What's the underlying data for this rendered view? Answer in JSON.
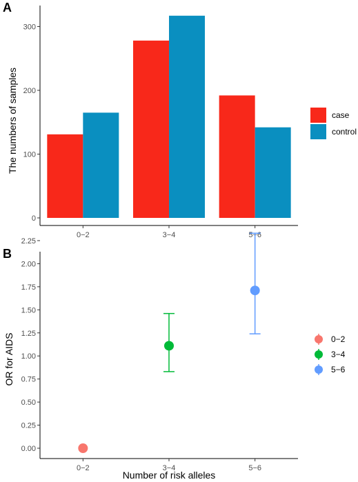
{
  "figure": {
    "panel_a_label": "A",
    "panel_b_label": "B"
  },
  "chart_data": [
    {
      "type": "bar",
      "panel": "A",
      "title": "",
      "xlabel": "",
      "ylabel": "The numbers of samples",
      "categories": [
        "0−2",
        "3−4",
        "5−6"
      ],
      "series": [
        {
          "name": "case",
          "color": "#F8281A",
          "values": [
            131,
            278,
            192
          ]
        },
        {
          "name": "control",
          "color": "#0A8FC0",
          "values": [
            165,
            317,
            142
          ]
        }
      ],
      "ylim": [
        0,
        330
      ],
      "yticks": [
        0,
        100,
        200,
        300
      ],
      "ytick_labels": [
        "0",
        "100",
        "200",
        "300"
      ],
      "grid": false,
      "legend_position": "right"
    },
    {
      "type": "scatter",
      "panel": "B",
      "title": "",
      "xlabel": "Number of risk alleles",
      "ylabel": "OR for AIDS",
      "categories": [
        "0−2",
        "3−4",
        "5−6"
      ],
      "points": [
        {
          "name": "0−2",
          "x": "0−2",
          "y": 0.0,
          "lower": null,
          "upper": null,
          "color": "#F8766D"
        },
        {
          "name": "3−4",
          "x": "3−4",
          "y": 1.11,
          "lower": 0.83,
          "upper": 1.46,
          "color": "#00BA38"
        },
        {
          "name": "5−6",
          "x": "5−6",
          "y": 1.71,
          "lower": 1.24,
          "upper": 2.33,
          "color": "#619CFF"
        }
      ],
      "ylim": [
        -0.06,
        2.4
      ],
      "yticks": [
        0,
        0.25,
        0.5,
        0.75,
        1.0,
        1.25,
        1.5,
        1.75,
        2.0,
        2.25
      ],
      "ytick_labels": [
        "0.00",
        "0.25",
        "0.50",
        "0.75",
        "1.00",
        "1.25",
        "1.50",
        "1.75",
        "2.00",
        "2.25"
      ],
      "grid": false,
      "legend_position": "right"
    }
  ]
}
